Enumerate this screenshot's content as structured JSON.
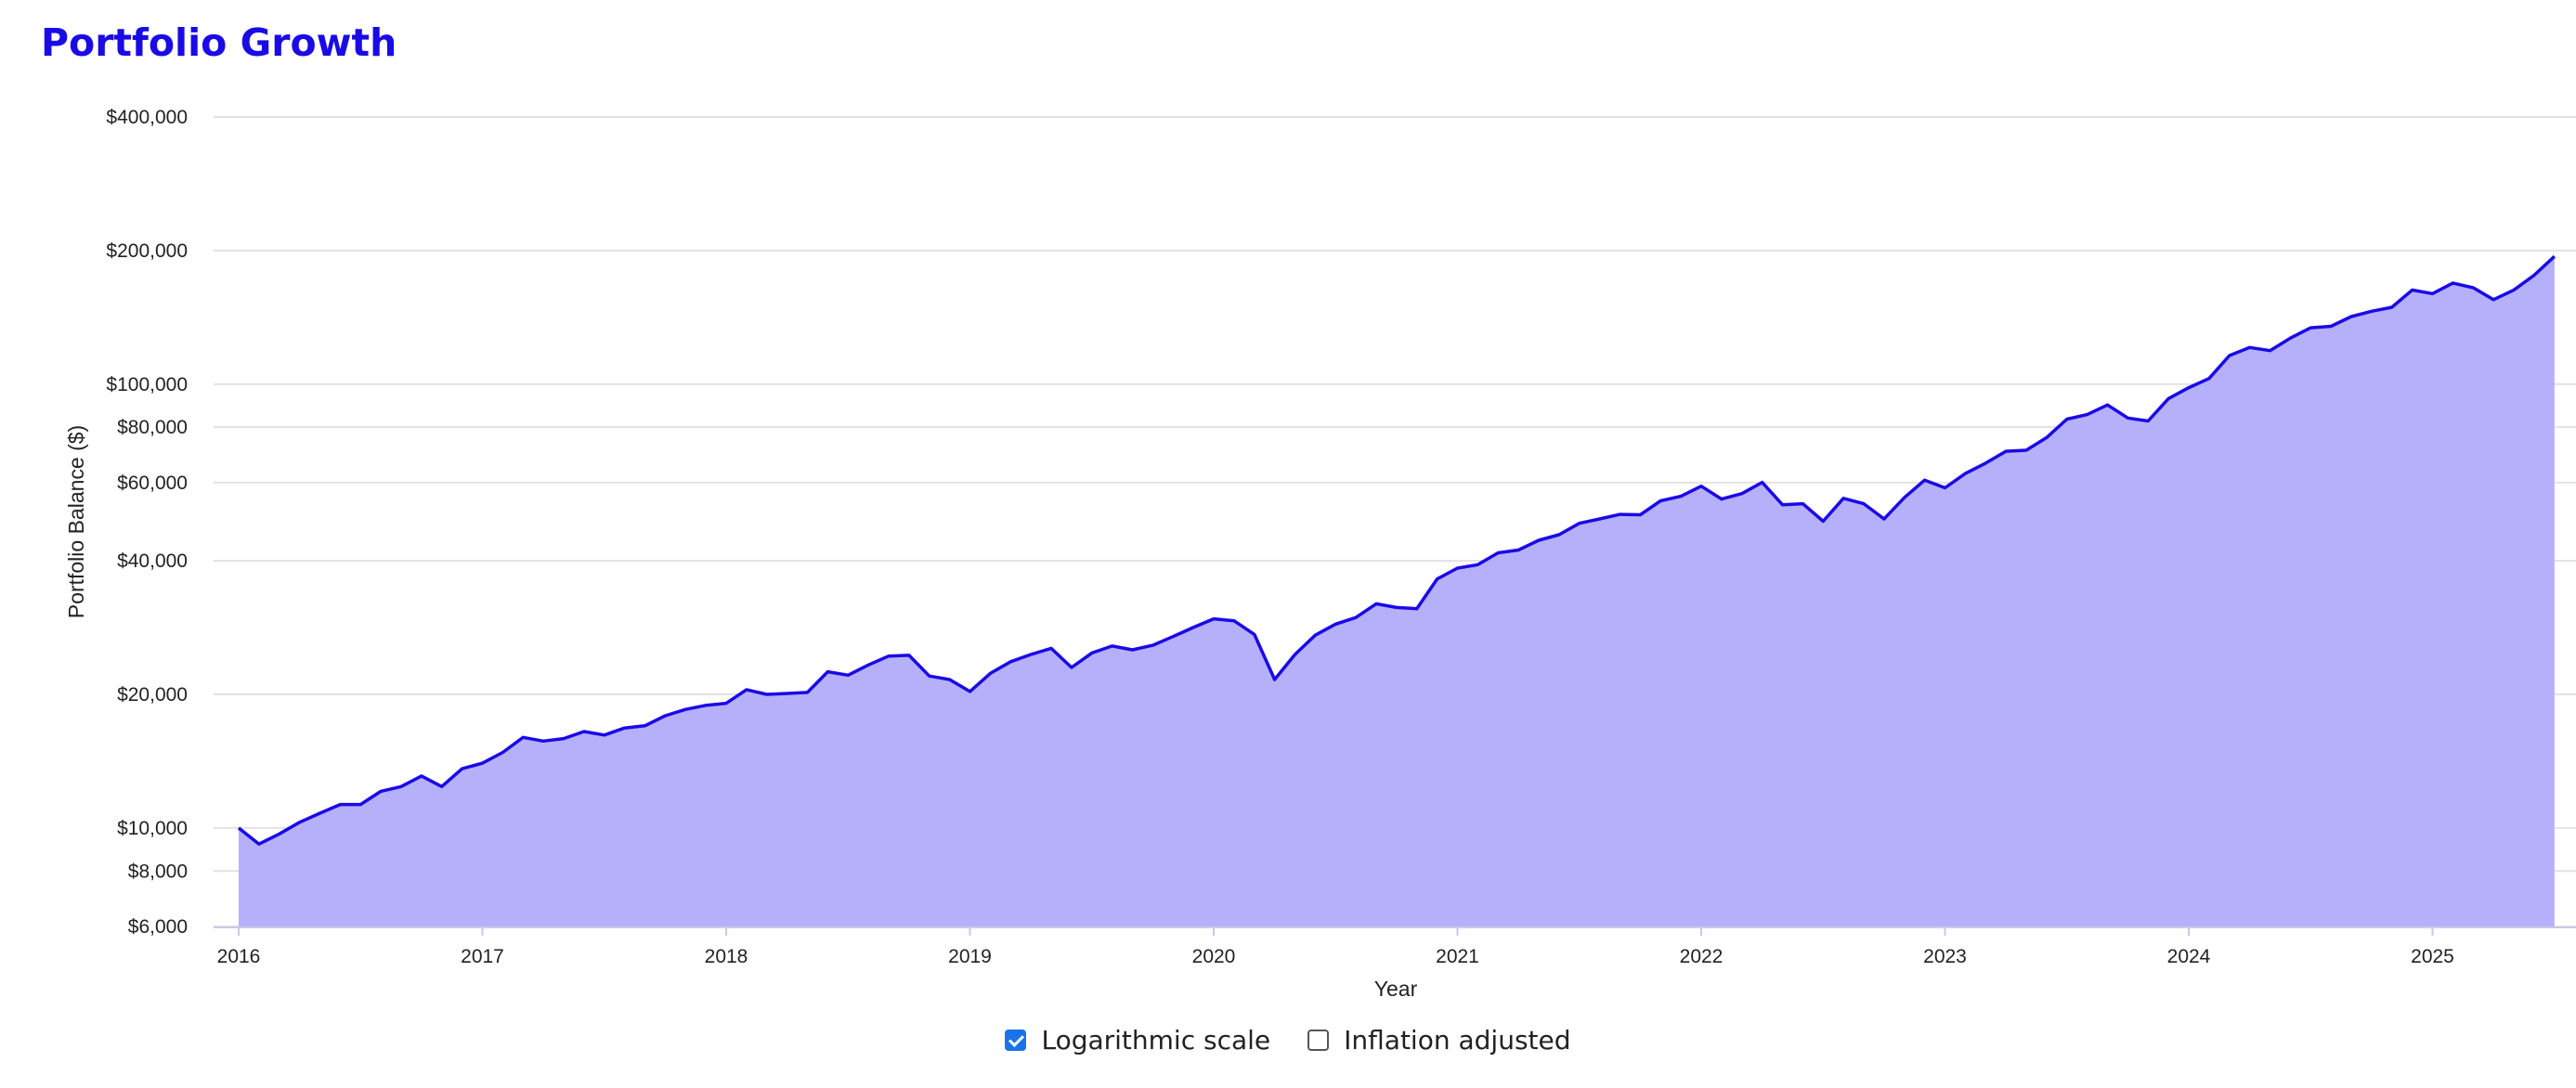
{
  "page": {
    "title": "Portfolio Growth"
  },
  "controls": {
    "log_scale_label": "Logarithmic scale",
    "log_scale_checked": true,
    "inflation_label": "Inflation adjusted",
    "inflation_checked": false
  },
  "colors": {
    "line": "#1a0ae6",
    "fill": "#b6b0fb",
    "grid": "#e2e2e2",
    "title": "#1a0ae6"
  },
  "chart_data": {
    "type": "area",
    "title": "Portfolio Growth",
    "xlabel": "Year",
    "ylabel": "Portfolio Balance ($)",
    "y_scale": "log",
    "grid": true,
    "ylim": [
      6000,
      400000
    ],
    "xlim": [
      2016,
      2025.5
    ],
    "x_ticks": [
      2016,
      2017,
      2018,
      2019,
      2020,
      2021,
      2022,
      2023,
      2024,
      2025
    ],
    "x_tick_labels": [
      "2016",
      "2017",
      "2018",
      "2019",
      "2020",
      "2021",
      "2022",
      "2023",
      "2024",
      "2025"
    ],
    "y_ticks": [
      6000,
      8000,
      10000,
      20000,
      40000,
      60000,
      80000,
      100000,
      200000,
      400000
    ],
    "y_tick_labels": [
      "$6,000",
      "$8,000",
      "$10,000",
      "$20,000",
      "$40,000",
      "$60,000",
      "$80,000",
      "$100,000",
      "$200,000",
      "$400,000"
    ],
    "series": [
      {
        "start": "2016-01",
        "frequency": "monthly",
        "values": [
          10000,
          9200,
          9700,
          10300,
          10800,
          11300,
          11300,
          12100,
          12400,
          13100,
          12400,
          13600,
          14000,
          14800,
          16000,
          15700,
          15900,
          16500,
          16200,
          16800,
          17000,
          17900,
          18500,
          18900,
          19100,
          20500,
          20000,
          20100,
          20200,
          22500,
          22100,
          23300,
          24400,
          24500,
          22000,
          21600,
          20300,
          22300,
          23700,
          24600,
          25400,
          23000,
          24800,
          25700,
          25200,
          25800,
          27000,
          28300,
          29600,
          29300,
          27300,
          21600,
          24600,
          27200,
          28800,
          29800,
          32000,
          31400,
          31200,
          36400,
          38500,
          39200,
          41700,
          42300,
          44500,
          45800,
          48600,
          49700,
          50900,
          50800,
          54600,
          55900,
          58900,
          55100,
          56700,
          60100,
          53500,
          53800,
          49100,
          55300,
          53800,
          49700,
          55500,
          60800,
          58400,
          62900,
          66400,
          70600,
          71000,
          75800,
          83400,
          85400,
          89800,
          83900,
          82600,
          92800,
          98200,
          103000,
          116000,
          121000,
          119000,
          127000,
          134000,
          135000,
          142000,
          146000,
          149000,
          163000,
          160000,
          169000,
          165000,
          155000,
          163000,
          176000,
          194000
        ]
      }
    ]
  }
}
